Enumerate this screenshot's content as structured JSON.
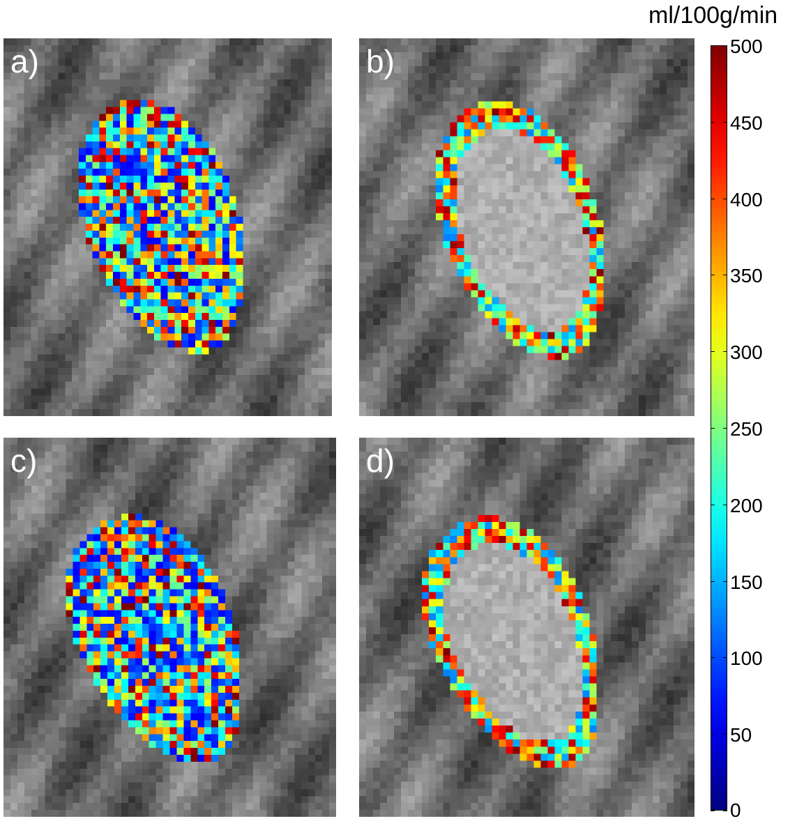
{
  "panels": [
    {
      "label": "a)",
      "overlay": "full"
    },
    {
      "label": "b)",
      "overlay": "rim"
    },
    {
      "label": "c)",
      "overlay": "full"
    },
    {
      "label": "d)",
      "overlay": "rim"
    }
  ],
  "colorbar": {
    "unit": "ml/100g/min",
    "min": 0,
    "max": 500,
    "colormap": "jet",
    "ticks": [
      "0",
      "50",
      "100",
      "150",
      "200",
      "250",
      "300",
      "350",
      "400",
      "450",
      "500"
    ]
  }
}
